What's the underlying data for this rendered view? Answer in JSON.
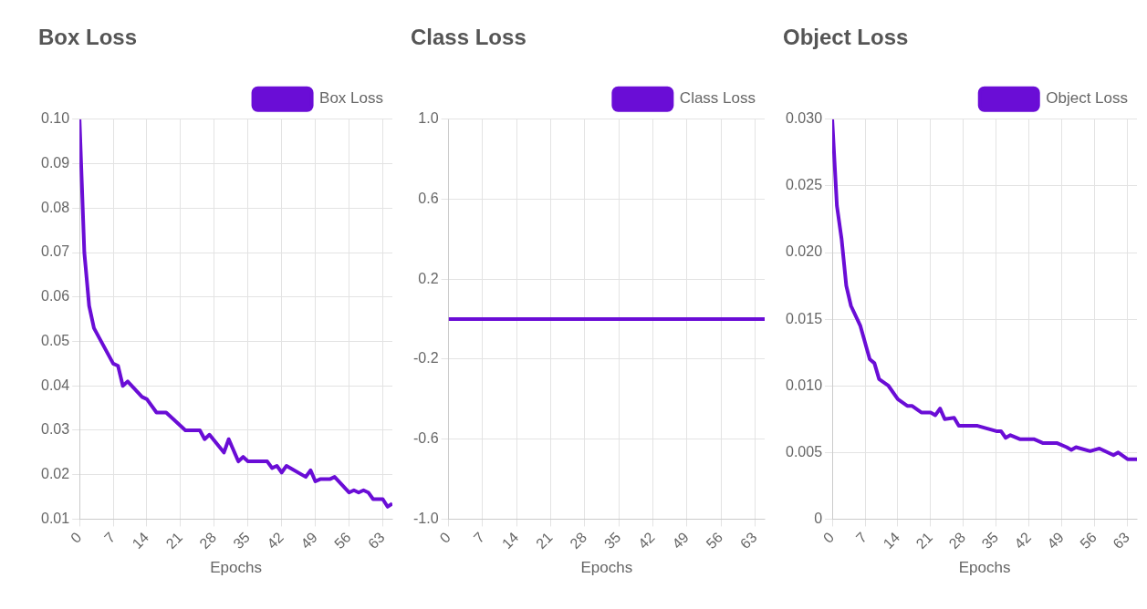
{
  "chart_data": [
    {
      "type": "line",
      "title": "Box Loss",
      "xlabel": "Epochs",
      "legend": "top right",
      "grid": true,
      "marker": "none",
      "xlim": [
        0,
        65
      ],
      "xticks": [
        0,
        7,
        14,
        21,
        28,
        35,
        42,
        49,
        56,
        63
      ],
      "ylim": [
        0.01,
        0.1
      ],
      "yticks": [
        0.01,
        0.02,
        0.03,
        0.04,
        0.05,
        0.06,
        0.07,
        0.08,
        0.09,
        {
          "value": 0.1,
          "label": "0.10"
        }
      ],
      "series": [
        {
          "name": "Box Loss",
          "color": "#6a0dd6",
          "x": [
            0,
            1,
            2,
            3,
            5,
            7,
            8,
            9,
            10,
            13,
            14,
            16,
            18,
            20,
            22,
            25,
            26,
            27,
            30,
            31,
            33,
            34,
            35,
            39,
            40,
            41,
            42,
            43,
            47,
            48,
            49,
            50,
            52,
            53,
            56,
            57,
            58,
            59,
            60,
            61,
            63,
            64,
            65
          ],
          "values": [
            0.1,
            0.07,
            0.058,
            0.053,
            0.049,
            0.045,
            0.0445,
            0.04,
            0.041,
            0.0375,
            0.037,
            0.034,
            0.034,
            0.032,
            0.03,
            0.03,
            0.028,
            0.029,
            0.025,
            0.028,
            0.023,
            0.024,
            0.023,
            0.023,
            0.0215,
            0.022,
            0.0205,
            0.022,
            0.0195,
            0.021,
            0.0185,
            0.019,
            0.019,
            0.0195,
            0.016,
            0.0165,
            0.016,
            0.0165,
            0.016,
            0.0145,
            0.0145,
            0.0128,
            0.0135
          ]
        }
      ]
    },
    {
      "type": "line",
      "title": "Class Loss",
      "xlabel": "Epochs",
      "legend": "top right",
      "grid": true,
      "marker": "none",
      "xlim": [
        0,
        65
      ],
      "xticks": [
        0,
        7,
        14,
        21,
        28,
        35,
        42,
        49,
        56,
        63
      ],
      "ylim": [
        -1,
        1
      ],
      "yticks": [
        {
          "value": -1,
          "label": "-1.0"
        },
        -0.6,
        -0.2,
        0.2,
        0.6,
        {
          "value": 1,
          "label": "1.0"
        }
      ],
      "series": [
        {
          "name": "Class Loss",
          "color": "#6a0dd6",
          "x": [
            0,
            65
          ],
          "values": [
            0,
            0
          ]
        }
      ]
    },
    {
      "type": "line",
      "title": "Object Loss",
      "xlabel": "Epochs",
      "legend": "top right",
      "grid": true,
      "marker": "none",
      "xlim": [
        0,
        65
      ],
      "xticks": [
        0,
        7,
        14,
        21,
        28,
        35,
        42,
        49,
        56,
        63
      ],
      "ylim": [
        0,
        0.03
      ],
      "yticks": [
        0,
        0.005,
        {
          "value": 0.01,
          "label": "0.010"
        },
        0.015,
        {
          "value": 0.02,
          "label": "0.020"
        },
        0.025,
        {
          "value": 0.03,
          "label": "0.030"
        }
      ],
      "series": [
        {
          "name": "Object Loss",
          "color": "#6a0dd6",
          "x": [
            0,
            1,
            2,
            3,
            4,
            6,
            8,
            9,
            10,
            12,
            14,
            16,
            17,
            19,
            21,
            22,
            23,
            24,
            26,
            27,
            31,
            35,
            36,
            37,
            38,
            40,
            43,
            45,
            48,
            50,
            51,
            52,
            55,
            57,
            60,
            61,
            63,
            65
          ],
          "values": [
            0.03,
            0.0235,
            0.021,
            0.0175,
            0.016,
            0.0145,
            0.012,
            0.0117,
            0.0105,
            0.01,
            0.009,
            0.0085,
            0.0085,
            0.008,
            0.008,
            0.0078,
            0.0083,
            0.0075,
            0.0076,
            0.007,
            0.007,
            0.0066,
            0.0066,
            0.0061,
            0.0063,
            0.006,
            0.006,
            0.0057,
            0.0057,
            0.0054,
            0.0052,
            0.0054,
            0.0051,
            0.0053,
            0.0048,
            0.005,
            0.0045,
            0.0045
          ]
        }
      ]
    }
  ]
}
